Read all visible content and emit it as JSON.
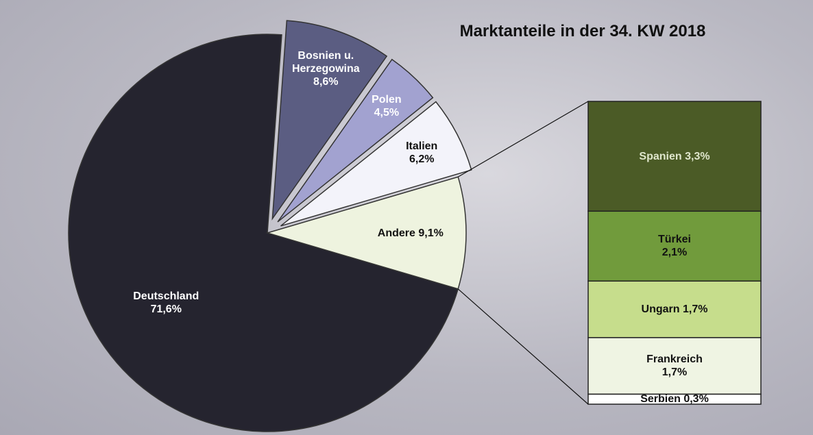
{
  "chart_data": {
    "type": "pie",
    "title": "Marktanteile in der 34. KW 2018",
    "categories": [
      "Deutschland",
      "Bosnien u. Herzegowina",
      "Polen",
      "Italien",
      "Andere"
    ],
    "values": [
      71.6,
      8.6,
      4.5,
      6.2,
      9.1
    ],
    "value_labels": [
      "71,6%",
      "8,6%",
      "4,5%",
      "6,2%",
      "9,1%"
    ],
    "colors": [
      "#25242f",
      "#5b5d82",
      "#a2a2d0",
      "#f3f3fa",
      "#eef3df"
    ],
    "exploded": [
      false,
      true,
      true,
      true,
      false
    ],
    "breakdown": {
      "categories": [
        "Spanien",
        "Türkei",
        "Ungarn",
        "Frankreich",
        "Serbien"
      ],
      "values": [
        3.3,
        2.1,
        1.7,
        1.7,
        0.3
      ],
      "value_labels": [
        "3,3%",
        "2,1%",
        "1,7%",
        "1,7%",
        "0,3%"
      ],
      "colors": [
        "#4b5b26",
        "#719b3c",
        "#c6dd8c",
        "#eff4e3",
        "#ffffff"
      ]
    }
  }
}
